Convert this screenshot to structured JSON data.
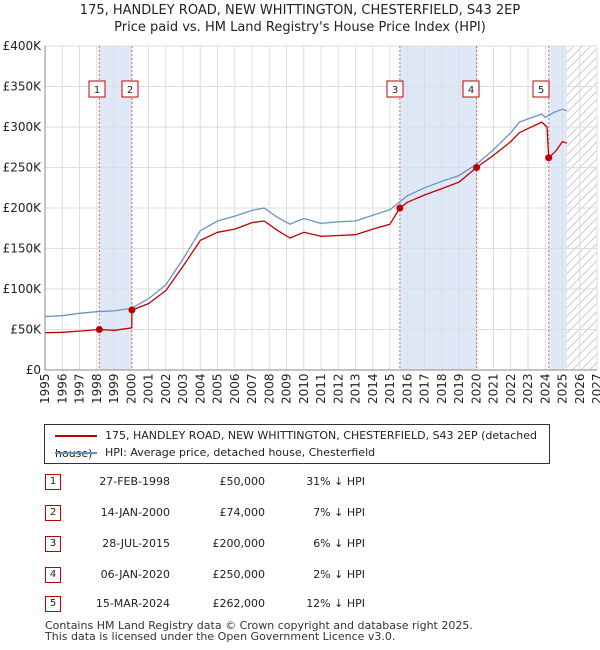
{
  "title": {
    "line1": "175, HANDLEY ROAD, NEW WHITTINGTON, CHESTERFIELD, S43 2EP",
    "line2": "Price paid vs. HM Land Registry's House Price Index (HPI)"
  },
  "colors": {
    "price_line": "#c00000",
    "hpi_line": "#6b93c8",
    "shade": "#dfe8f6",
    "marker_box": "#c00000",
    "vline": "#d46a6a"
  },
  "chart_data": {
    "type": "line",
    "title": "Price paid vs. HM Land Registry's House Price Index (HPI)",
    "xlabel": "",
    "ylabel": "",
    "xlim": [
      1995,
      2027
    ],
    "ylim": [
      0,
      400000
    ],
    "x_ticks": [
      "1995",
      "1996",
      "1997",
      "1998",
      "1999",
      "2000",
      "2001",
      "2002",
      "2003",
      "2004",
      "2005",
      "2006",
      "2007",
      "2008",
      "2009",
      "2010",
      "2011",
      "2012",
      "2013",
      "2014",
      "2015",
      "2016",
      "2017",
      "2018",
      "2019",
      "2020",
      "2021",
      "2022",
      "2023",
      "2024",
      "2025",
      "2026",
      "2027"
    ],
    "y_ticks": [
      {
        "value": 0,
        "label": "£0"
      },
      {
        "value": 50000,
        "label": "£50K"
      },
      {
        "value": 100000,
        "label": "£100K"
      },
      {
        "value": 150000,
        "label": "£150K"
      },
      {
        "value": 200000,
        "label": "£200K"
      },
      {
        "value": 250000,
        "label": "£250K"
      },
      {
        "value": 300000,
        "label": "£300K"
      },
      {
        "value": 350000,
        "label": "£350K"
      },
      {
        "value": 400000,
        "label": "£400K"
      }
    ],
    "forecast_start": 2025.25,
    "shaded_periods": [
      [
        1998.15,
        2000.04
      ],
      [
        2015.57,
        2020.02
      ],
      [
        2024.2,
        2025.25
      ]
    ],
    "series": [
      {
        "name": "175, HANDLEY ROAD, NEW WHITTINGTON, CHESTERFIELD, S43 2EP (detached house)",
        "color": "#c00000",
        "x": [
          1995,
          1996,
          1997,
          1998.15,
          1999,
          2000.03,
          2000.04,
          2001,
          2002,
          2003,
          2004,
          2005,
          2006,
          2007,
          2007.7,
          2008.5,
          2009.2,
          2010,
          2011,
          2012,
          2013,
          2014,
          2015,
          2015.57,
          2016,
          2017,
          2018,
          2019,
          2020.02,
          2021,
          2022,
          2022.5,
          2023,
          2023.8,
          2024.1,
          2024.2,
          2024.6,
          2025,
          2025.25
        ],
        "values": [
          46000,
          46500,
          48000,
          50000,
          49000,
          52000,
          74000,
          82000,
          98000,
          128000,
          160000,
          170000,
          174000,
          182000,
          184000,
          172000,
          163000,
          170000,
          165000,
          166000,
          167000,
          174000,
          180000,
          200000,
          207000,
          216000,
          224000,
          232000,
          250000,
          265000,
          282000,
          293000,
          298000,
          306000,
          300000,
          262000,
          270000,
          282000,
          280000
        ]
      },
      {
        "name": "HPI: Average price, detached house, Chesterfield",
        "color": "#6b93c8",
        "x": [
          1995,
          1996,
          1997,
          1998,
          1999,
          2000,
          2001,
          2002,
          2003,
          2004,
          2005,
          2006,
          2007,
          2007.7,
          2008.5,
          2009.2,
          2010,
          2011,
          2012,
          2013,
          2014,
          2015,
          2016,
          2017,
          2018,
          2019,
          2020,
          2021,
          2022,
          2022.5,
          2023,
          2023.8,
          2024,
          2024.5,
          2025,
          2025.25
        ],
        "values": [
          66000,
          67000,
          70000,
          72000,
          73000,
          76000,
          88000,
          105000,
          137000,
          172000,
          184000,
          190000,
          197000,
          200000,
          188000,
          180000,
          187000,
          181000,
          183000,
          184000,
          191000,
          198000,
          215000,
          225000,
          233000,
          240000,
          254000,
          272000,
          293000,
          306000,
          310000,
          316000,
          312000,
          318000,
          322000,
          320000
        ]
      }
    ],
    "sales": [
      {
        "label": "1",
        "x": 1998.15,
        "value": 50000
      },
      {
        "label": "2",
        "x": 2000.04,
        "value": 74000
      },
      {
        "label": "3",
        "x": 2015.57,
        "value": 200000
      },
      {
        "label": "4",
        "x": 2020.02,
        "value": 250000
      },
      {
        "label": "5",
        "x": 2024.2,
        "value": 262000
      }
    ]
  },
  "legend": {
    "property": "175, HANDLEY ROAD, NEW WHITTINGTON, CHESTERFIELD, S43 2EP (detached house)",
    "hpi": "HPI: Average price, detached house, Chesterfield"
  },
  "sales_table": [
    {
      "num": "1",
      "date": "27-FEB-1998",
      "price": "£50,000",
      "hpi": "31% ↓ HPI"
    },
    {
      "num": "2",
      "date": "14-JAN-2000",
      "price": "£74,000",
      "hpi": "7% ↓ HPI"
    },
    {
      "num": "3",
      "date": "28-JUL-2015",
      "price": "£200,000",
      "hpi": "6% ↓ HPI"
    },
    {
      "num": "4",
      "date": "06-JAN-2020",
      "price": "£250,000",
      "hpi": "2% ↓ HPI"
    },
    {
      "num": "5",
      "date": "15-MAR-2024",
      "price": "£262,000",
      "hpi": "12% ↓ HPI"
    }
  ],
  "footer": {
    "line1": "Contains HM Land Registry data © Crown copyright and database right 2025.",
    "line2": "This data is licensed under the Open Government Licence v3.0."
  }
}
